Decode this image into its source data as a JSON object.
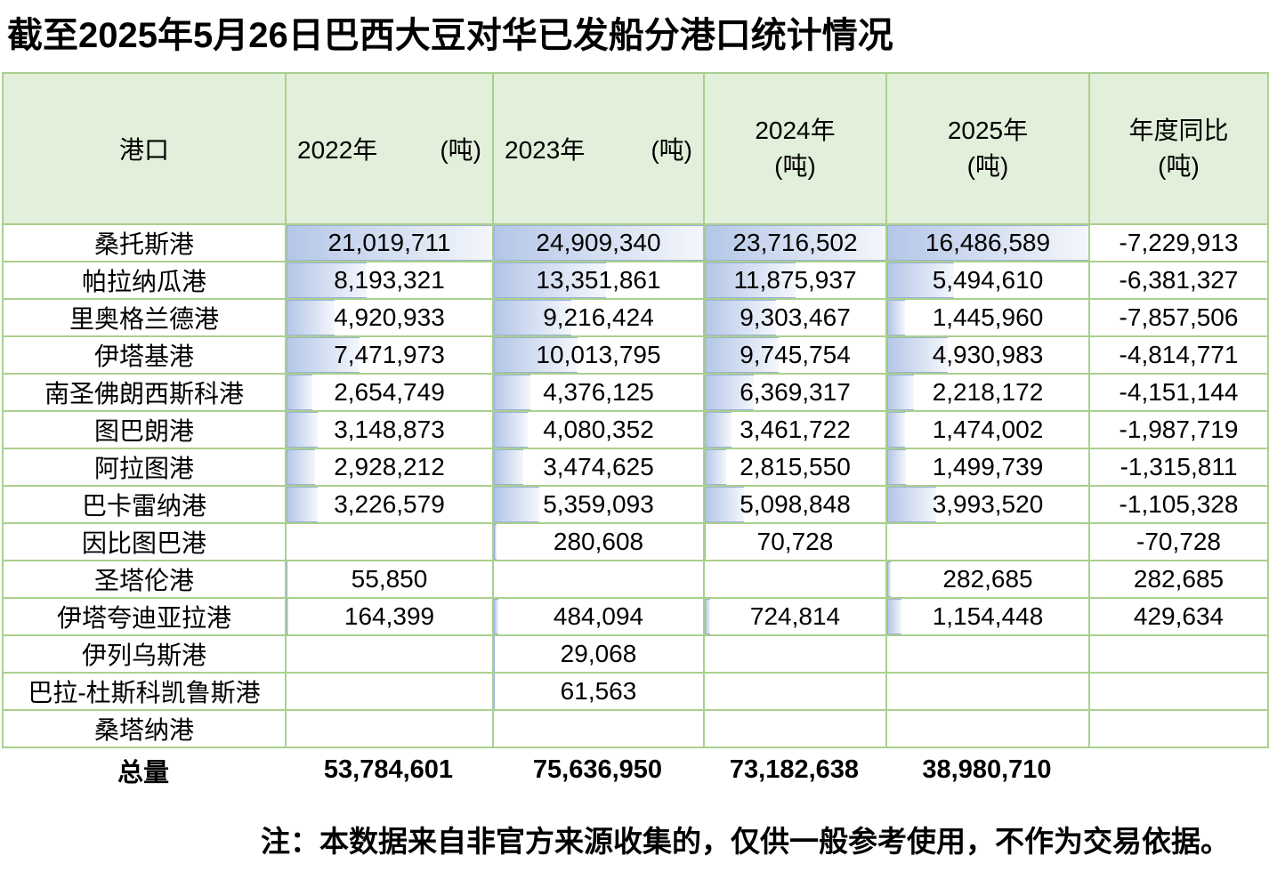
{
  "title": "截至2025年5月26日巴西大豆对华已发船分港口统计情况",
  "header": {
    "port": "港口",
    "col_2022": {
      "year": "2022年",
      "unit": "(吨)"
    },
    "col_2023": {
      "year": "2023年",
      "unit": "(吨)"
    },
    "col_2024": {
      "line1": "2024年",
      "line2": "(吨)"
    },
    "col_2025": {
      "line1": "2025年",
      "line2": "(吨)"
    },
    "col_yoy": {
      "line1": "年度同比",
      "line2": "(吨)"
    }
  },
  "rows": [
    {
      "port": "桑托斯港",
      "v2022": 21019711,
      "v2023": 24909340,
      "v2024": 23716502,
      "v2025": 16486589,
      "yoy": -7229913
    },
    {
      "port": "帕拉纳瓜港",
      "v2022": 8193321,
      "v2023": 13351861,
      "v2024": 11875937,
      "v2025": 5494610,
      "yoy": -6381327
    },
    {
      "port": "里奥格兰德港",
      "v2022": 4920933,
      "v2023": 9216424,
      "v2024": 9303467,
      "v2025": 1445960,
      "yoy": -7857506
    },
    {
      "port": "伊塔基港",
      "v2022": 7471973,
      "v2023": 10013795,
      "v2024": 9745754,
      "v2025": 4930983,
      "yoy": -4814771
    },
    {
      "port": "南圣佛朗西斯科港",
      "v2022": 2654749,
      "v2023": 4376125,
      "v2024": 6369317,
      "v2025": 2218172,
      "yoy": -4151144
    },
    {
      "port": "图巴朗港",
      "v2022": 3148873,
      "v2023": 4080352,
      "v2024": 3461722,
      "v2025": 1474002,
      "yoy": -1987719
    },
    {
      "port": "阿拉图港",
      "v2022": 2928212,
      "v2023": 3474625,
      "v2024": 2815550,
      "v2025": 1499739,
      "yoy": -1315811
    },
    {
      "port": "巴卡雷纳港",
      "v2022": 3226579,
      "v2023": 5359093,
      "v2024": 5098848,
      "v2025": 3993520,
      "yoy": -1105328
    },
    {
      "port": "因比图巴港",
      "v2022": null,
      "v2023": 280608,
      "v2024": 70728,
      "v2025": null,
      "yoy": -70728
    },
    {
      "port": "圣塔伦港",
      "v2022": 55850,
      "v2023": null,
      "v2024": null,
      "v2025": 282685,
      "yoy": 282685
    },
    {
      "port": "伊塔夸迪亚拉港",
      "v2022": 164399,
      "v2023": 484094,
      "v2024": 724814,
      "v2025": 1154448,
      "yoy": 429634
    },
    {
      "port": "伊列乌斯港",
      "v2022": null,
      "v2023": 29068,
      "v2024": null,
      "v2025": null,
      "yoy": null
    },
    {
      "port": "巴拉-杜斯科凯鲁斯港",
      "v2022": null,
      "v2023": 61563,
      "v2024": null,
      "v2025": null,
      "yoy": null
    },
    {
      "port": "桑塔纳港",
      "v2022": null,
      "v2023": null,
      "v2024": null,
      "v2025": null,
      "yoy": null
    }
  ],
  "totals": {
    "label": "总量",
    "v2022": 53784601,
    "v2023": 75636950,
    "v2024": 73182638,
    "v2025": 38980710,
    "yoy": null
  },
  "note": "注：本数据来自非官方来源收集的，仅供一般参考使用，不作为交易依据。",
  "colors": {
    "header_fill": "#E2EFDA",
    "grid_border": "#A9D08E",
    "databar_start": "#B4C6E7",
    "databar_end": "#F4F7FC",
    "databar_border": "#9DB0D8",
    "text": "#000000"
  }
}
